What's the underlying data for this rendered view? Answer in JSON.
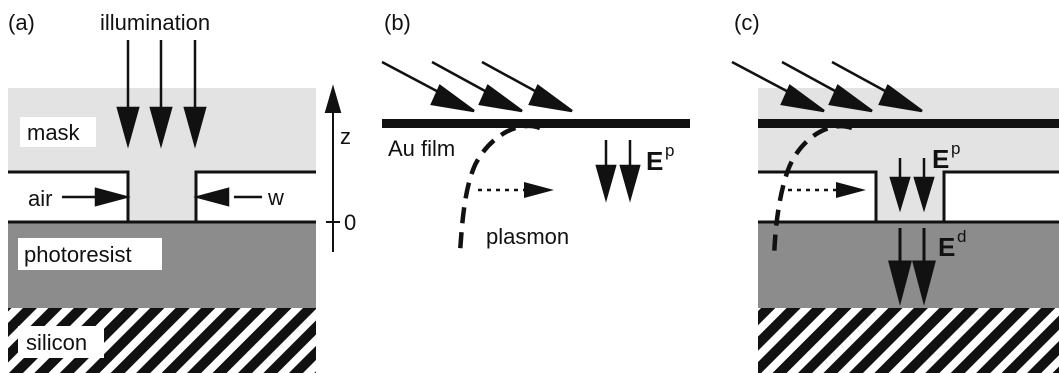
{
  "panels": {
    "a": {
      "tag": "(a)",
      "illumination": "illumination",
      "mask": "mask",
      "air": "air",
      "w": "w",
      "z": "z",
      "zero": "0",
      "photoresist": "photoresist",
      "silicon": "silicon"
    },
    "b": {
      "tag": "(b)",
      "au_film": "Au film",
      "plasmon": "plasmon",
      "ep_main": "E",
      "ep_sup": "p"
    },
    "c": {
      "tag": "(c)",
      "ep_main": "E",
      "ep_sup": "p",
      "ed_main": "E",
      "ed_sup": "d"
    }
  },
  "colors": {
    "mask": "#e3e3e3",
    "photoresist": "#8c8c8c",
    "hatch": "#111111",
    "line": "#111111"
  }
}
